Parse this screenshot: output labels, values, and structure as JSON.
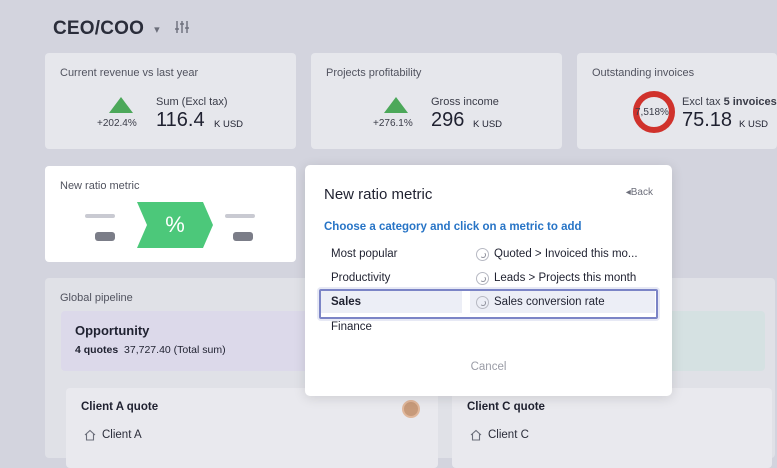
{
  "header": {
    "title": "CEO/COO",
    "caret": "▾"
  },
  "cards": {
    "revenue": {
      "title": "Current revenue vs last year",
      "delta": "+202.4%",
      "sum_label": "Sum (Excl tax)",
      "value": "116.4",
      "unit": "K USD"
    },
    "profit": {
      "title": "Projects profitability",
      "delta": "+276.1%",
      "sum_label": "Gross income",
      "value": "296",
      "unit": "K USD"
    },
    "invoices": {
      "title": "Outstanding invoices",
      "ring_text": "7,518%",
      "sum_label_prefix": "Excl tax",
      "sum_label_bold": "5 invoices",
      "value": "75.18",
      "unit": "K USD"
    }
  },
  "new_ratio_card": {
    "title": "New ratio metric",
    "badge": "%"
  },
  "pipeline": {
    "title": "Global pipeline",
    "opportunity": {
      "title": "Opportunity",
      "count": "4 quotes",
      "sum": "37,727.40 (Total sum)"
    },
    "quotes": [
      {
        "title": "Client A quote",
        "client": "Client A"
      },
      {
        "title": "Client C quote",
        "client": "Client C"
      }
    ]
  },
  "modal": {
    "title": "New ratio metric",
    "back": "Back",
    "subtitle": "Choose a category and click on a metric to add",
    "categories": [
      "Most popular",
      "Productivity",
      "Sales",
      "Finance"
    ],
    "metrics": [
      "Quoted > Invoiced this mo...",
      "Leads > Projects this month",
      "Sales conversion rate"
    ],
    "cancel": "Cancel"
  },
  "colors": {
    "accent_blue": "#2774c6",
    "badge_green": "#4cc87a",
    "trend_green": "#4ca85a",
    "ring_red": "#d0322c",
    "highlight": "#7b84c6"
  }
}
